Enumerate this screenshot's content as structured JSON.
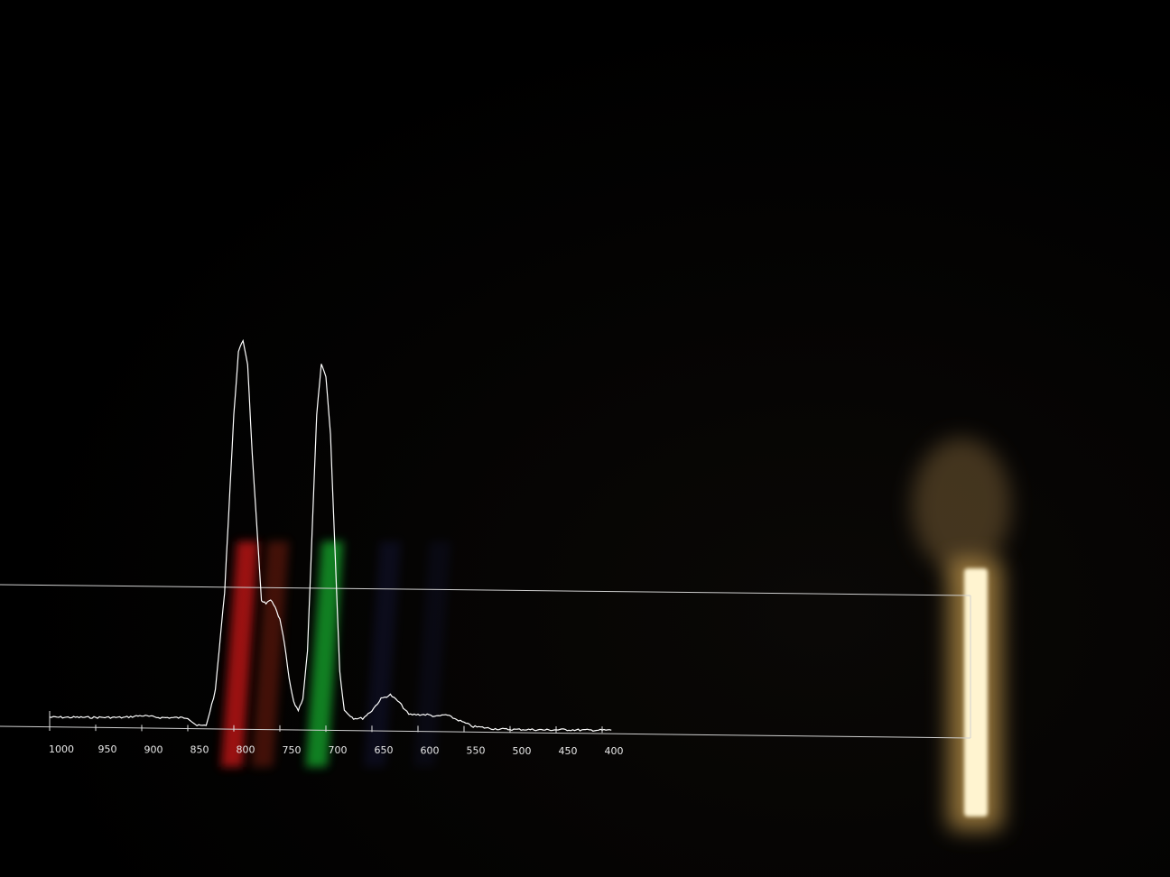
{
  "chart_data": {
    "type": "line",
    "title": "",
    "xlabel": "",
    "ylabel": "",
    "x_axis": {
      "reversed": true,
      "min": 1000,
      "max": 400,
      "ticks": [
        1000,
        950,
        900,
        850,
        800,
        750,
        700,
        650,
        600,
        550,
        500,
        450,
        400
      ],
      "tick_labels": [
        "1000",
        "950",
        "900",
        "850",
        "800",
        "750",
        "700",
        "650",
        "600",
        "550",
        "500",
        "450",
        "400"
      ]
    },
    "ylim": [
      0,
      1
    ],
    "grid": false,
    "legend": "none",
    "line_color": "#ffffff",
    "series": [
      {
        "x": [
          1000,
          980,
          960,
          940,
          920,
          900,
          880,
          860,
          850,
          840,
          830,
          820,
          810,
          800,
          795,
          790,
          785,
          780,
          770,
          765,
          760,
          755,
          750,
          745,
          740,
          735,
          730,
          725,
          720,
          715,
          710,
          705,
          700,
          695,
          690,
          685,
          680,
          675,
          670,
          660,
          650,
          640,
          630,
          620,
          610,
          600,
          590,
          580,
          570,
          560,
          550,
          540,
          530,
          520,
          500,
          480,
          460,
          440,
          420,
          400,
          390
        ],
        "values": [
          0.03,
          0.03,
          0.03,
          0.03,
          0.03,
          0.035,
          0.03,
          0.03,
          0.03,
          0.01,
          0.01,
          0.1,
          0.35,
          0.8,
          0.96,
          0.99,
          0.93,
          0.7,
          0.33,
          0.32,
          0.33,
          0.31,
          0.28,
          0.22,
          0.13,
          0.07,
          0.05,
          0.08,
          0.2,
          0.5,
          0.8,
          0.93,
          0.9,
          0.75,
          0.45,
          0.15,
          0.05,
          0.04,
          0.03,
          0.03,
          0.05,
          0.08,
          0.09,
          0.07,
          0.04,
          0.04,
          0.04,
          0.035,
          0.04,
          0.03,
          0.02,
          0.01,
          0.008,
          0.005,
          0.003,
          0.003,
          0.002,
          0.003,
          0.002,
          0.002,
          0.002
        ]
      }
    ],
    "spectrum_bands": [
      {
        "color": "#ff1e1e",
        "x": 785,
        "opacity": 0.6
      },
      {
        "color": "#ff3c1e",
        "x": 752,
        "opacity": 0.25
      },
      {
        "color": "#1ee63c",
        "x": 693,
        "opacity": 0.55
      },
      {
        "color": "#3c46c8",
        "x": 630,
        "opacity": 0.12
      },
      {
        "color": "#3c46c8",
        "x": 576,
        "opacity": 0.08
      }
    ]
  },
  "light_source": {
    "glow_color": "#ffc864",
    "core_color": "#fff4d0",
    "smoke_color": "#b48c50"
  },
  "frame_color": "#d0d0d0",
  "background_color": "#000000"
}
